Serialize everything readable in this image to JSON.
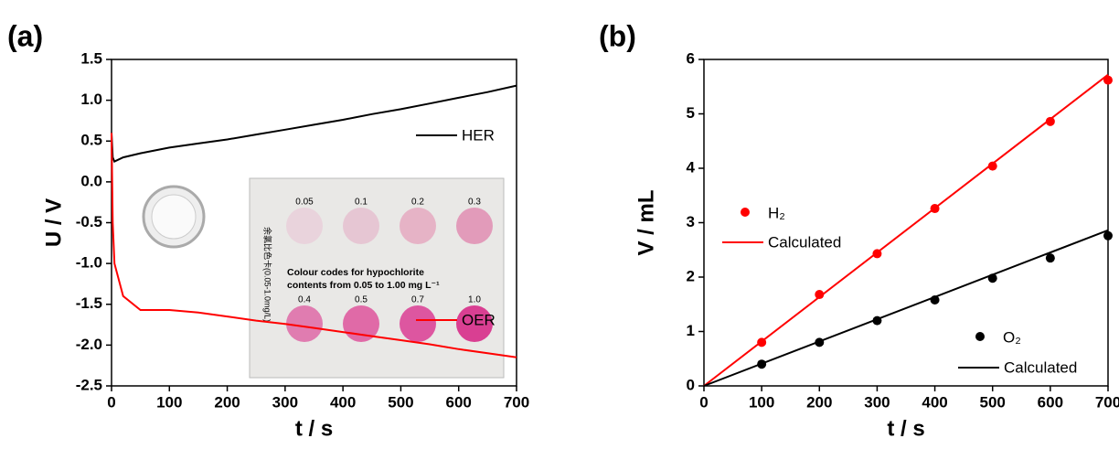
{
  "chart_data": [
    {
      "type": "line",
      "panel": "(a)",
      "ylabel": "U / V",
      "xlabel": "t / s",
      "x": [
        0,
        2,
        5,
        20,
        50,
        100,
        150,
        200,
        250,
        300,
        350,
        400,
        450,
        500,
        550,
        600,
        650,
        700
      ],
      "series": [
        {
          "name": "HER",
          "color": "#000000",
          "values": [
            0.6,
            0.3,
            0.25,
            0.3,
            0.35,
            0.42,
            0.47,
            0.52,
            0.58,
            0.64,
            0.7,
            0.76,
            0.83,
            0.89,
            0.96,
            1.03,
            1.1,
            1.18
          ]
        },
        {
          "name": "OER",
          "color": "#ff0000",
          "values": [
            0.6,
            -0.5,
            -1.0,
            -1.4,
            -1.57,
            -1.57,
            -1.6,
            -1.65,
            -1.7,
            -1.74,
            -1.79,
            -1.84,
            -1.89,
            -1.94,
            -1.99,
            -2.05,
            -2.1,
            -2.15
          ]
        }
      ],
      "xlim": [
        0,
        700
      ],
      "xticks": [
        0,
        100,
        200,
        300,
        400,
        500,
        600,
        700
      ],
      "ylim": [
        -2.5,
        1.5
      ],
      "yticks": [
        -2.5,
        {
          "value": -2,
          "label": "-2.0"
        },
        -1.5,
        {
          "value": -1,
          "label": "-1.0"
        },
        -0.5,
        {
          "value": 0,
          "label": "0.0"
        },
        0.5,
        {
          "value": 1,
          "label": "1.0"
        },
        1.5
      ],
      "inset": {
        "caption_lines": [
          "Colour codes for hypochlorite",
          "contents from 0.05 to 1.00 mg L⁻¹"
        ],
        "side_text": "余氯比色卡(0.05-1.0mg/L)",
        "codes": [
          "0.05",
          "0.1",
          "0.2",
          "0.3",
          "0.4",
          "0.5",
          "0.7",
          "1.0"
        ]
      }
    },
    {
      "type": "scatter",
      "panel": "(b)",
      "ylabel": "V / mL",
      "xlabel": "t / s",
      "series": [
        {
          "name": "H₂",
          "color": "#ff0000",
          "mode": "markers",
          "x": [
            100,
            200,
            300,
            400,
            500,
            600,
            700
          ],
          "values": [
            0.8,
            1.68,
            2.43,
            3.26,
            4.04,
            4.86,
            5.62
          ]
        },
        {
          "name": "Calculated",
          "color": "#ff0000",
          "mode": "line",
          "x": [
            0,
            700
          ],
          "values": [
            0,
            5.72
          ]
        },
        {
          "name": "O₂",
          "color": "#000000",
          "mode": "markers",
          "x": [
            100,
            200,
            300,
            400,
            500,
            600,
            700
          ],
          "values": [
            0.4,
            0.8,
            1.2,
            1.58,
            1.98,
            2.35,
            2.76
          ]
        },
        {
          "name": "Calculated",
          "color": "#000000",
          "mode": "line",
          "x": [
            0,
            700
          ],
          "values": [
            0,
            2.86
          ]
        }
      ],
      "xlim": [
        0,
        700
      ],
      "xticks": [
        0,
        100,
        200,
        300,
        400,
        500,
        600,
        700
      ],
      "ylim": [
        0,
        6
      ],
      "yticks": [
        0,
        1,
        2,
        3,
        4,
        5,
        6
      ]
    }
  ]
}
